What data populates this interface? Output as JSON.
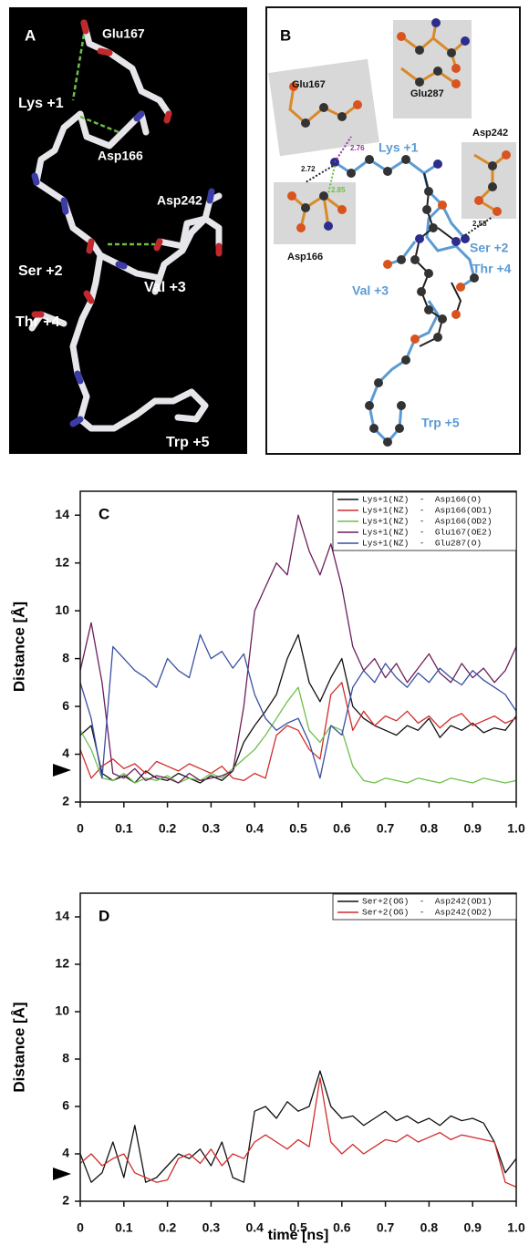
{
  "panel_a": {
    "label": "A",
    "residues": [
      "Glu167",
      "Lys +1",
      "Asp166",
      "Asp242",
      "Ser +2",
      "Val +3",
      "Thr +4",
      "Trp +5"
    ]
  },
  "panel_b": {
    "label": "B",
    "residues": [
      "Glu167",
      "Glu287",
      "Asp242",
      "Asp166"
    ],
    "backbone": [
      "Lys +1",
      "Ser +2",
      "Thr +4",
      "Val +3",
      "Trp +5"
    ],
    "distances": [
      2.76,
      2.72,
      2.85,
      2.58
    ]
  },
  "chart_data": [
    {
      "type": "line",
      "panel_label": "C",
      "y_label": "Distance [Å]",
      "x": [
        0,
        0.025,
        0.05,
        0.075,
        0.1,
        0.125,
        0.15,
        0.175,
        0.2,
        0.225,
        0.25,
        0.275,
        0.3,
        0.325,
        0.35,
        0.375,
        0.4,
        0.425,
        0.45,
        0.475,
        0.5,
        0.525,
        0.55,
        0.575,
        0.6,
        0.625,
        0.65,
        0.675,
        0.7,
        0.725,
        0.75,
        0.775,
        0.8,
        0.825,
        0.85,
        0.875,
        0.9,
        0.925,
        0.95,
        0.975,
        1.0
      ],
      "series": [
        {
          "name": "Lys+1(NZ)  -  Asp166(O)",
          "color": "#111111",
          "values": [
            4.8,
            5.2,
            3.2,
            2.9,
            3.1,
            2.8,
            3.3,
            3.0,
            2.9,
            3.2,
            3.0,
            2.8,
            3.1,
            2.9,
            3.3,
            4.5,
            5.2,
            5.8,
            6.5,
            8.0,
            9.0,
            7.0,
            6.2,
            7.2,
            8.0,
            6.0,
            5.5,
            5.2,
            5.0,
            4.8,
            5.2,
            5.0,
            5.5,
            4.7,
            5.2,
            5.0,
            5.3,
            4.9,
            5.1,
            5.0,
            5.6
          ]
        },
        {
          "name": "Lys+1(NZ)  -  Asp166(OD1)",
          "color": "#d22b2b",
          "values": [
            4.2,
            3.0,
            3.5,
            3.8,
            3.4,
            3.6,
            3.2,
            3.7,
            3.5,
            3.3,
            3.6,
            3.4,
            3.2,
            3.5,
            3.0,
            2.9,
            3.2,
            3.0,
            4.8,
            5.2,
            5.0,
            4.2,
            3.8,
            6.5,
            7.0,
            5.0,
            5.8,
            5.2,
            5.6,
            5.4,
            5.8,
            5.3,
            5.6,
            5.1,
            5.5,
            5.7,
            5.2,
            5.4,
            5.6,
            5.3,
            5.5
          ]
        },
        {
          "name": "Lys+1(NZ)  -  Asp166(OD2)",
          "color": "#6cc04a",
          "values": [
            5.0,
            4.2,
            3.0,
            2.9,
            3.2,
            2.8,
            3.0,
            2.9,
            3.1,
            2.8,
            3.0,
            2.9,
            3.2,
            3.0,
            3.4,
            3.8,
            4.2,
            4.8,
            5.5,
            6.2,
            6.8,
            5.0,
            4.5,
            5.2,
            5.0,
            3.5,
            2.9,
            2.8,
            3.0,
            2.9,
            2.8,
            3.0,
            2.9,
            2.8,
            3.0,
            2.9,
            2.8,
            3.0,
            2.9,
            2.8,
            2.9
          ]
        },
        {
          "name": "Lys+1(NZ)  -  Glu167(OE2)",
          "color": "#6b1f5c",
          "values": [
            7.5,
            9.5,
            7.0,
            3.2,
            3.0,
            3.4,
            2.9,
            3.1,
            3.0,
            2.8,
            3.2,
            2.9,
            3.0,
            3.1,
            3.3,
            6.0,
            10.0,
            11.0,
            12.0,
            11.5,
            14.0,
            12.5,
            11.5,
            12.8,
            11.0,
            8.5,
            7.5,
            8.0,
            7.2,
            7.8,
            7.0,
            7.6,
            8.2,
            7.4,
            7.0,
            7.8,
            7.2,
            7.6,
            7.0,
            7.5,
            8.5
          ]
        },
        {
          "name": "Lys+1(NZ)  -  Glu287(O)",
          "color": "#3a4fa0",
          "values": [
            7.0,
            5.5,
            3.0,
            8.5,
            8.0,
            7.5,
            7.2,
            6.8,
            8.0,
            7.5,
            7.2,
            9.0,
            8.0,
            8.3,
            7.6,
            8.2,
            6.5,
            5.5,
            5.0,
            5.3,
            5.5,
            4.5,
            3.0,
            5.2,
            4.8,
            6.8,
            7.5,
            7.0,
            7.8,
            7.2,
            6.8,
            7.4,
            7.0,
            7.6,
            7.2,
            6.9,
            7.5,
            7.1,
            6.8,
            6.5,
            5.8
          ]
        }
      ],
      "xlim": [
        0,
        1
      ],
      "ylim": [
        2,
        15
      ],
      "xticks": [
        0,
        0.1,
        0.2,
        0.3,
        0.4,
        0.5,
        0.6,
        0.7,
        0.8,
        0.9,
        {
          "value": 1,
          "label": "1.0"
        }
      ],
      "yticks": [
        2,
        4,
        6,
        8,
        10,
        12,
        14
      ],
      "legend": "upper right"
    },
    {
      "type": "line",
      "panel_label": "D",
      "y_label": "Distance [Å]",
      "x_label": "time [ns]",
      "x": [
        0,
        0.025,
        0.05,
        0.075,
        0.1,
        0.125,
        0.15,
        0.175,
        0.2,
        0.225,
        0.25,
        0.275,
        0.3,
        0.325,
        0.35,
        0.375,
        0.4,
        0.425,
        0.45,
        0.475,
        0.5,
        0.525,
        0.55,
        0.575,
        0.6,
        0.625,
        0.65,
        0.675,
        0.7,
        0.725,
        0.75,
        0.775,
        0.8,
        0.825,
        0.85,
        0.875,
        0.9,
        0.925,
        0.95,
        0.975,
        1.0
      ],
      "series": [
        {
          "name": "Ser+2(OG)  -  Asp242(OD1)",
          "color": "#111111",
          "values": [
            4.0,
            2.8,
            3.2,
            4.5,
            3.0,
            5.2,
            2.8,
            3.0,
            3.5,
            4.0,
            3.8,
            4.2,
            3.5,
            4.5,
            3.0,
            2.8,
            5.8,
            6.0,
            5.5,
            6.2,
            5.8,
            6.0,
            7.5,
            6.0,
            5.5,
            5.6,
            5.2,
            5.5,
            5.8,
            5.4,
            5.6,
            5.3,
            5.5,
            5.2,
            5.6,
            5.4,
            5.5,
            5.3,
            4.5,
            3.2,
            3.8
          ]
        },
        {
          "name": "Ser+2(OG)  -  Asp242(OD2)",
          "color": "#d22b2b",
          "values": [
            3.6,
            4.0,
            3.5,
            3.8,
            4.0,
            3.2,
            3.0,
            2.8,
            2.9,
            3.8,
            4.0,
            3.6,
            4.2,
            3.5,
            4.0,
            3.8,
            4.5,
            4.8,
            4.5,
            4.2,
            4.6,
            4.3,
            7.2,
            4.5,
            4.0,
            4.4,
            4.0,
            4.3,
            4.6,
            4.5,
            4.8,
            4.5,
            4.7,
            4.9,
            4.6,
            4.8,
            4.7,
            4.6,
            4.5,
            2.8,
            2.6
          ]
        }
      ],
      "xlim": [
        0,
        1
      ],
      "ylim": [
        2,
        15
      ],
      "xticks": [
        0,
        0.1,
        0.2,
        0.3,
        0.4,
        0.5,
        0.6,
        0.7,
        0.8,
        0.9,
        {
          "value": 1,
          "label": "1.0"
        }
      ],
      "yticks": [
        2,
        4,
        6,
        8,
        10,
        12,
        14
      ],
      "legend": "upper right"
    }
  ]
}
